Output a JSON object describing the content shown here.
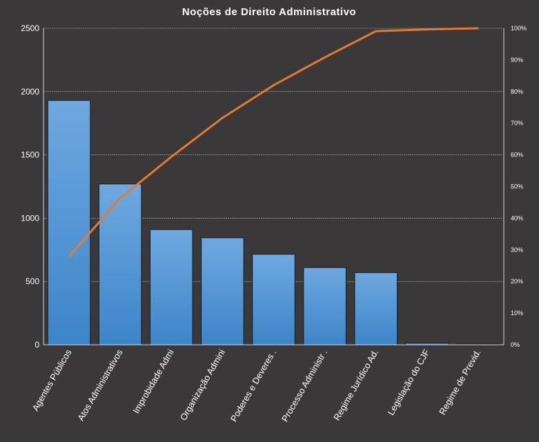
{
  "chart_data": {
    "type": "bar",
    "title": "Noções de Direito  Administrativo",
    "categories": [
      "Agentes Públicos",
      "Atos Administrativos",
      "Improbidade Admi",
      "Organização Admini",
      "Poderes e Deveres .",
      "Processo Administr .",
      "Regime Jurídico Ad.",
      "Legislação do CJF",
      "Regime de Previd."
    ],
    "series": [
      {
        "type": "bar",
        "axis": "left",
        "values": [
          1930,
          1270,
          910,
          845,
          715,
          610,
          570,
          12,
          6
        ]
      },
      {
        "type": "line",
        "axis": "right",
        "values": [
          0.279,
          0.463,
          0.594,
          0.717,
          0.82,
          0.908,
          0.991,
          0.9965,
          1.0
        ]
      }
    ],
    "y_left": {
      "min": 0,
      "max": 2500,
      "ticks": [
        "0",
        "500",
        "1000",
        "1500",
        "2000",
        "2500"
      ]
    },
    "y_right": {
      "min": 0,
      "max": 1,
      "ticks": [
        "0%",
        "10%",
        "20%",
        "30%",
        "40%",
        "50%",
        "60%",
        "70%",
        "80%",
        "90%",
        "100%"
      ]
    },
    "grid": true,
    "legend": "none",
    "colors": {
      "bar_top": "#6fa8e0",
      "bar_bottom": "#3d85c9",
      "line": "#e87a2c",
      "background": "#3a3838",
      "grid": "#bfbfbf"
    }
  }
}
